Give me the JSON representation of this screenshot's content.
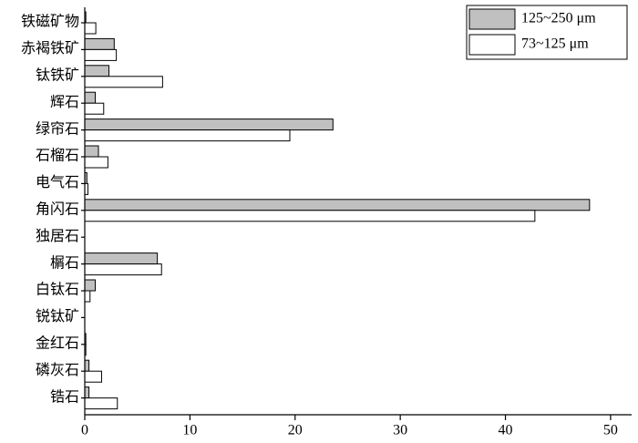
{
  "chart_data": {
    "type": "hbar",
    "categories": [
      "铁磁矿物",
      "赤褐铁矿",
      "钛铁矿",
      "辉石",
      "绿帘石",
      "石榴石",
      "电气石",
      "角闪石",
      "独居石",
      "榍石",
      "白钛石",
      "锐钛矿",
      "金红石",
      "磷灰石",
      "锆石"
    ],
    "series": [
      {
        "name": "125~250 μm",
        "color": "#c0c0c0",
        "values": [
          0.1,
          2.8,
          2.3,
          1.0,
          23.6,
          1.3,
          0.2,
          48.0,
          0,
          6.9,
          1.0,
          0,
          0.1,
          0.4,
          0.4
        ]
      },
      {
        "name": "73~125 μm",
        "color": "#ffffff",
        "values": [
          1.05,
          3.0,
          7.4,
          1.8,
          19.5,
          2.2,
          0.3,
          42.8,
          0,
          7.3,
          0.5,
          0,
          0.1,
          1.6,
          3.1
        ]
      }
    ],
    "xlim": [
      0,
      52
    ],
    "xticks": [
      0,
      10,
      20,
      30,
      40,
      50
    ],
    "legend": "upper right"
  }
}
